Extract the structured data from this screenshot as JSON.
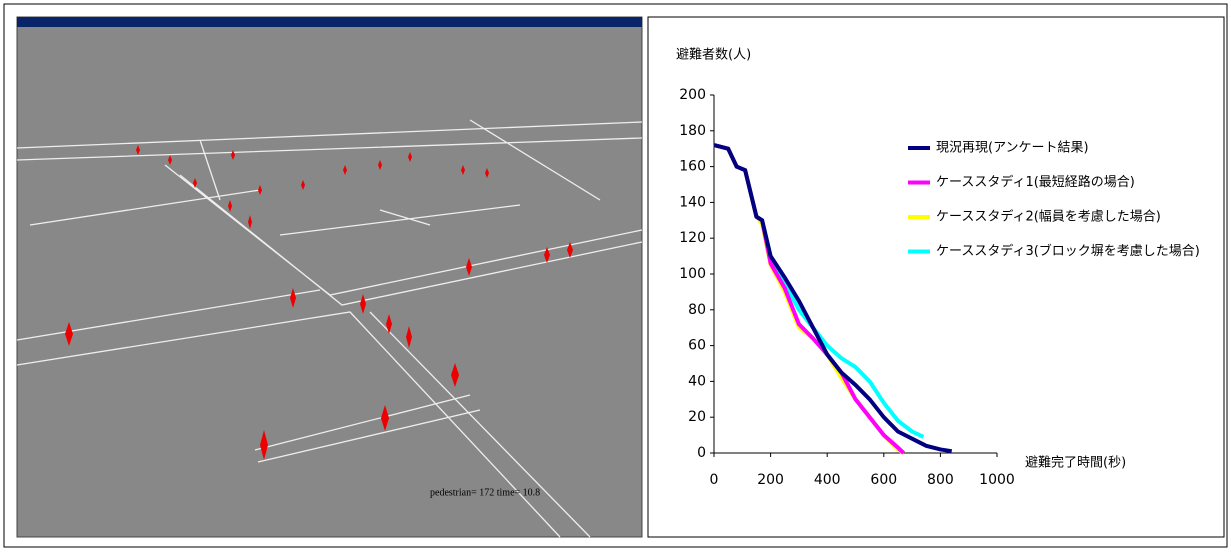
{
  "simulation": {
    "status": "pedestrian= 172  time= 10.8"
  },
  "chart_data": {
    "type": "line",
    "y_label": "避難者数(人)",
    "x_label": "避難完了時間(秒)",
    "xlim": [
      0,
      1000
    ],
    "xticks": [
      0,
      200,
      400,
      600,
      800,
      1000
    ],
    "ylim": [
      0,
      200
    ],
    "yticks": [
      0,
      20,
      40,
      60,
      80,
      100,
      120,
      140,
      160,
      180,
      200
    ],
    "series": [
      {
        "name": "現況再現(アンケート結果)",
        "color": "#000080",
        "x": [
          0,
          50,
          80,
          110,
          130,
          150,
          170,
          200,
          250,
          300,
          350,
          400,
          450,
          500,
          550,
          600,
          650,
          700,
          750,
          800,
          840
        ],
        "values": [
          172,
          170,
          160,
          158,
          145,
          132,
          130,
          110,
          98,
          85,
          70,
          55,
          45,
          38,
          30,
          20,
          12,
          8,
          4,
          2,
          1
        ]
      },
      {
        "name": "ケーススタディ1(最短経路の場合)",
        "color": "#ff00ff",
        "x": [
          0,
          50,
          80,
          110,
          130,
          150,
          170,
          200,
          250,
          300,
          350,
          400,
          450,
          500,
          550,
          600,
          650,
          670
        ],
        "values": [
          172,
          170,
          160,
          158,
          145,
          132,
          130,
          106,
          92,
          72,
          64,
          55,
          45,
          30,
          20,
          10,
          3,
          0
        ]
      },
      {
        "name": "ケーススタディ2(幅員を考慮した場合)",
        "color": "#ffff00",
        "x": [
          0,
          50,
          80,
          110,
          130,
          150,
          170,
          200,
          250,
          300,
          350,
          400,
          450,
          500,
          550,
          600,
          650,
          670
        ],
        "values": [
          172,
          170,
          160,
          158,
          145,
          132,
          128,
          105,
          90,
          70,
          64,
          55,
          42,
          30,
          20,
          10,
          2,
          0
        ]
      },
      {
        "name": "ケーススタディ3(ブロック塀を考慮した場合)",
        "color": "#00ffff",
        "x": [
          0,
          50,
          80,
          110,
          130,
          150,
          170,
          200,
          250,
          300,
          350,
          400,
          450,
          500,
          550,
          600,
          650,
          700,
          740
        ],
        "values": [
          172,
          170,
          160,
          158,
          145,
          132,
          130,
          110,
          95,
          80,
          70,
          60,
          53,
          48,
          40,
          28,
          18,
          12,
          9
        ]
      }
    ]
  }
}
